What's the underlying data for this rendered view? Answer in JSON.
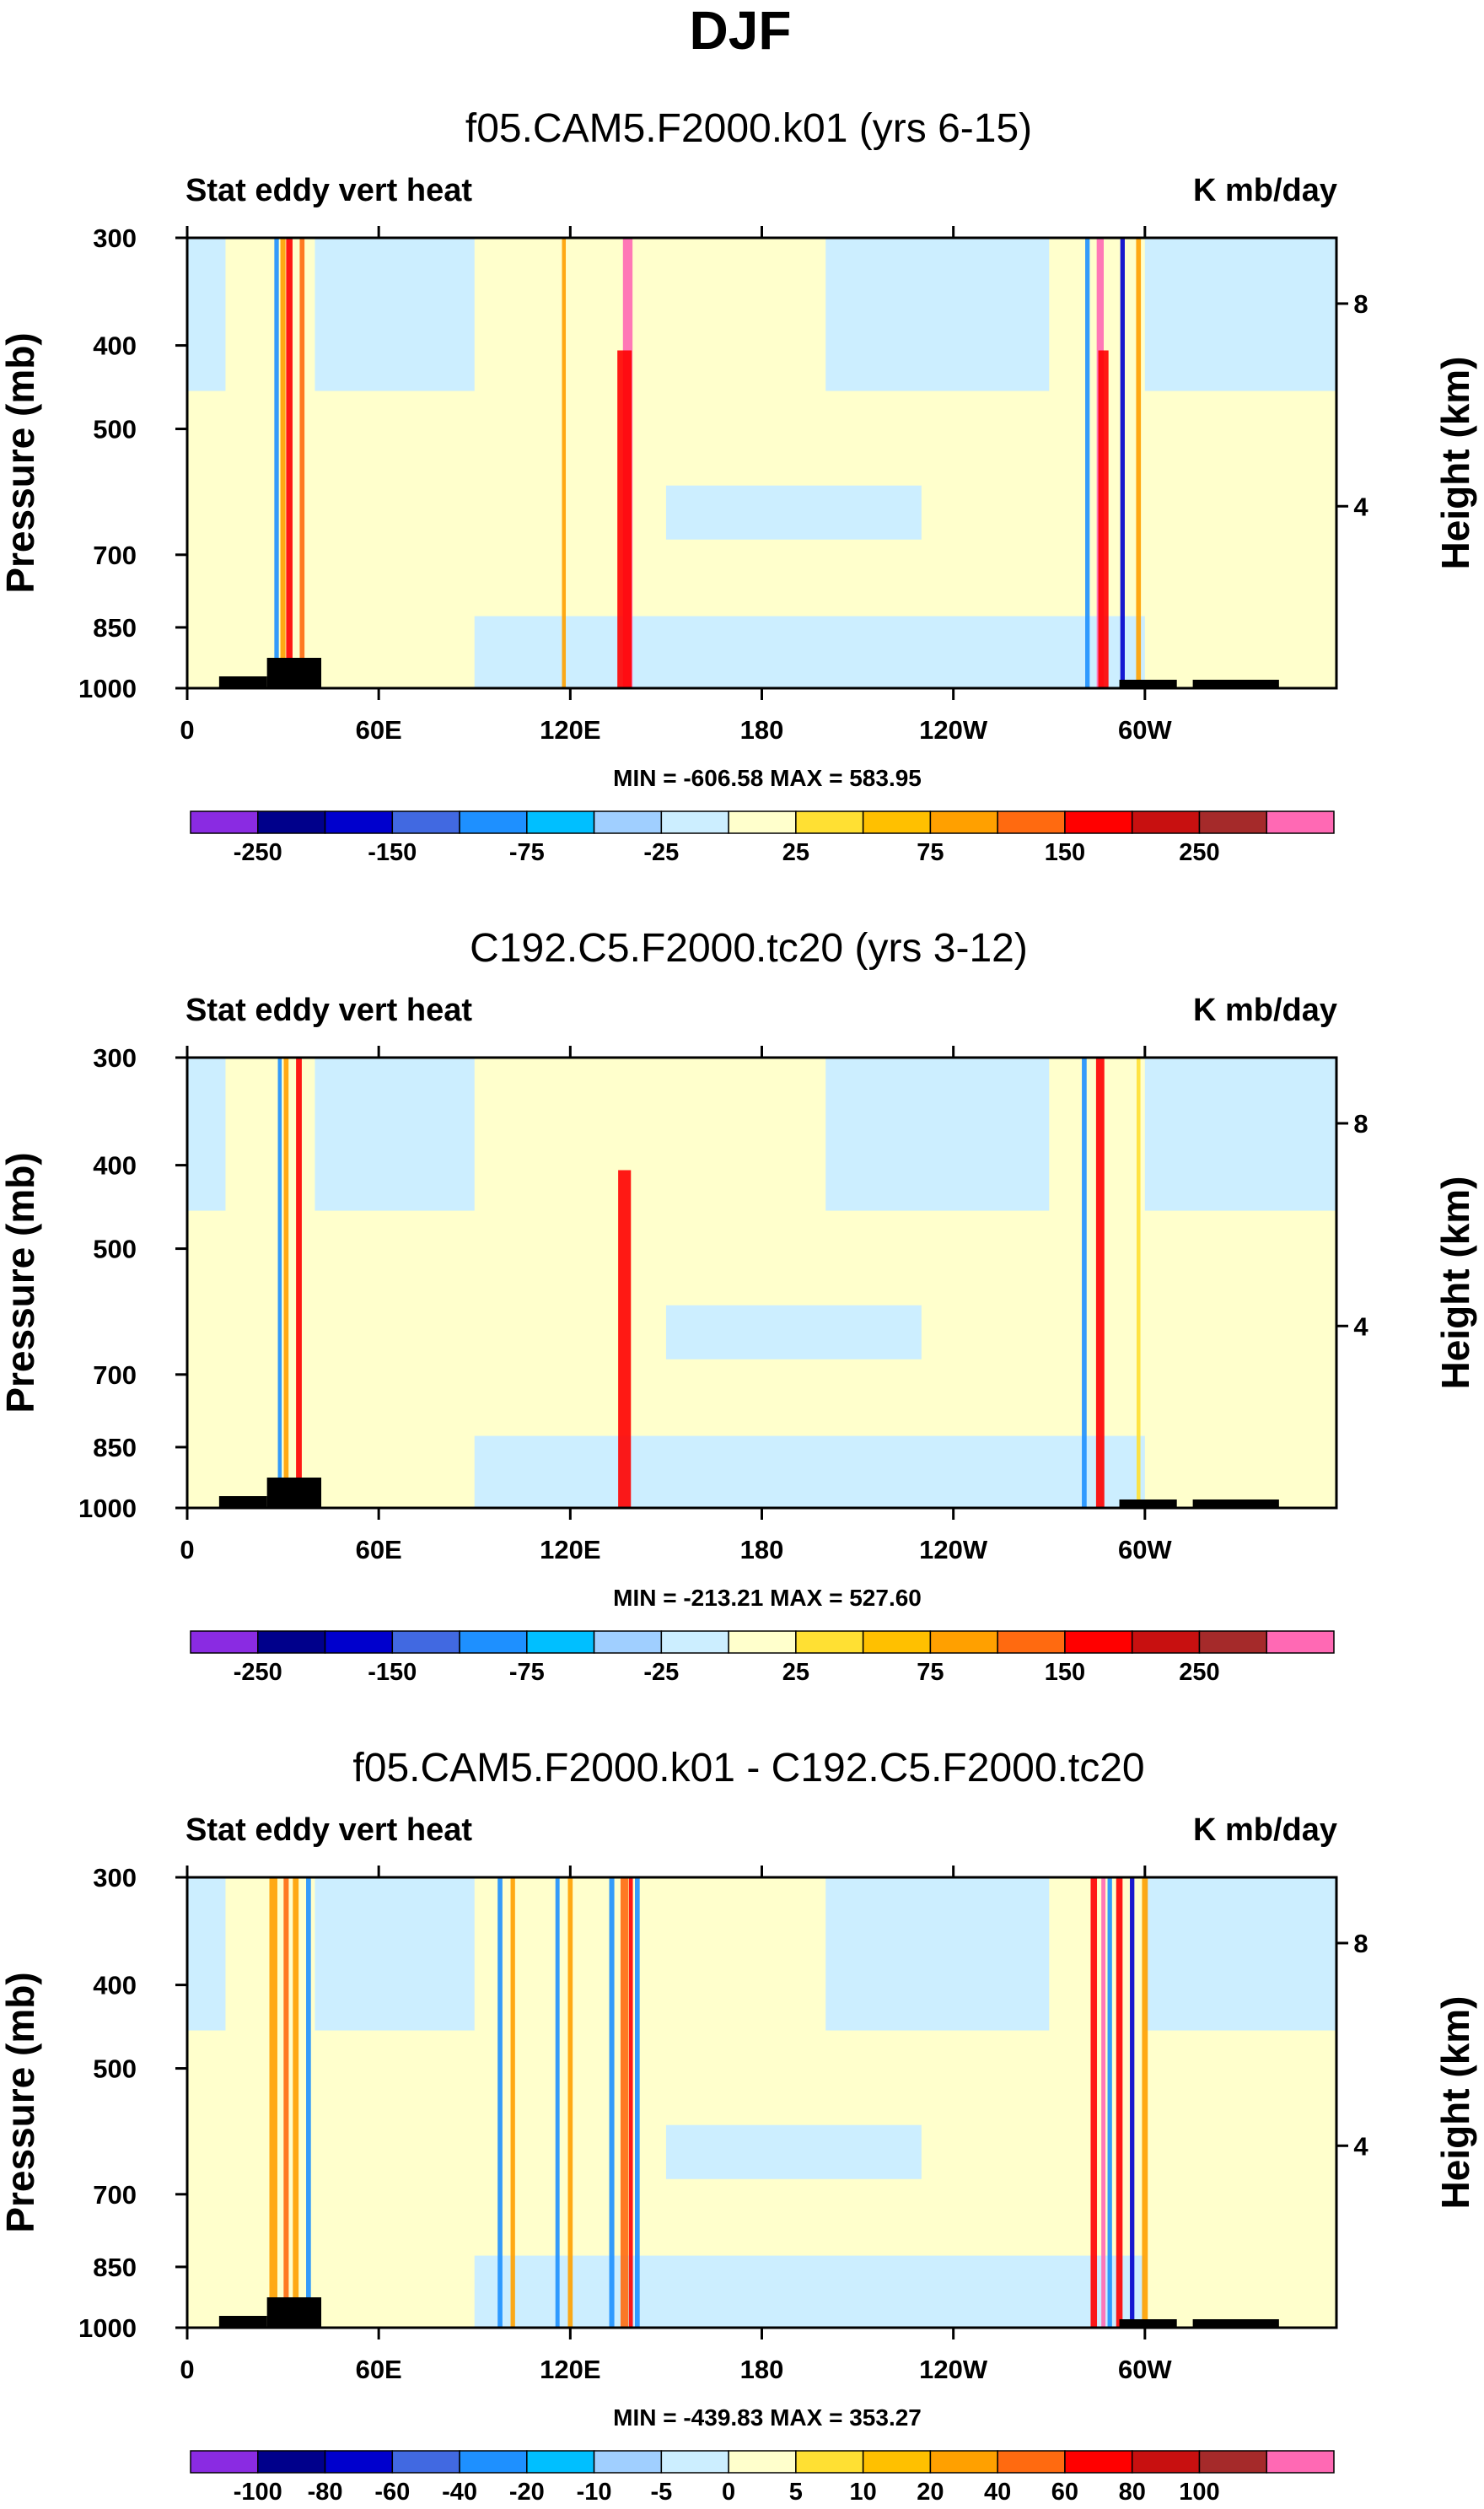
{
  "figure_title": "DJF",
  "chart_data": [
    {
      "type": "heatmap",
      "title": "f05.CAM5.F2000.k01 (yrs 6-15)",
      "left_label": "Stat eddy vert heat",
      "right_label": "K mb/day",
      "ylabel": "Pressure (mb)",
      "ylabel_right": "Height (km)",
      "yticks": [
        "300",
        "400",
        "500",
        "700",
        "850",
        "1000"
      ],
      "yticks_right": [
        "8",
        "4"
      ],
      "xticks": [
        "0",
        "60E",
        "120E",
        "180",
        "120W",
        "60W"
      ],
      "stats": "MIN = -606.58   MAX = 583.95",
      "colorbar": {
        "colors": [
          "#8a2be2",
          "#00008b",
          "#0000cd",
          "#4169e1",
          "#1e90ff",
          "#00bfff",
          "#a0cfff",
          "#cceeff",
          "#ffffcc",
          "#ffe033",
          "#ffc000",
          "#ffa000",
          "#ff6a10",
          "#ff0000",
          "#c81010",
          "#a52a2a",
          "#ff69b4"
        ],
        "labels": [
          "-250",
          "-150",
          "-75",
          "-25",
          "25",
          "75",
          "150",
          "250"
        ]
      },
      "features": [
        {
          "lon": 32,
          "width": 2.0,
          "color": "#ff0000"
        },
        {
          "lon": 30,
          "width": 1.6,
          "color": "#ffa000"
        },
        {
          "lon": 36,
          "width": 1.5,
          "color": "#ff6a10"
        },
        {
          "lon": 28,
          "width": 1.4,
          "color": "#1e90ff"
        },
        {
          "lon": 118,
          "width": 1.2,
          "color": "#ffa000"
        },
        {
          "lon": 138,
          "width": 3.0,
          "color": "#ff69b4"
        },
        {
          "lon": 137,
          "width": 4.5,
          "color": "#ff0000"
        },
        {
          "lon": 282,
          "width": 1.4,
          "color": "#1e90ff"
        },
        {
          "lon": 286,
          "width": 2.2,
          "color": "#ff69b4"
        },
        {
          "lon": 287,
          "width": 3.2,
          "color": "#ff0000"
        },
        {
          "lon": 293,
          "width": 1.4,
          "color": "#0000cd"
        },
        {
          "lon": 298,
          "width": 1.5,
          "color": "#ffa000"
        }
      ]
    },
    {
      "type": "heatmap",
      "title": "C192.C5.F2000.tc20 (yrs 3-12)",
      "left_label": "Stat eddy vert heat",
      "right_label": "K mb/day",
      "ylabel": "Pressure (mb)",
      "ylabel_right": "Height (km)",
      "yticks": [
        "300",
        "400",
        "500",
        "700",
        "850",
        "1000"
      ],
      "yticks_right": [
        "8",
        "4"
      ],
      "xticks": [
        "0",
        "60E",
        "120E",
        "180",
        "120W",
        "60W"
      ],
      "stats": "MIN = -213.21   MAX = 527.60",
      "colorbar": {
        "colors": [
          "#8a2be2",
          "#00008b",
          "#0000cd",
          "#4169e1",
          "#1e90ff",
          "#00bfff",
          "#a0cfff",
          "#cceeff",
          "#ffffcc",
          "#ffe033",
          "#ffc000",
          "#ffa000",
          "#ff6a10",
          "#ff0000",
          "#c81010",
          "#a52a2a",
          "#ff69b4"
        ],
        "labels": [
          "-250",
          "-150",
          "-75",
          "-25",
          "25",
          "75",
          "150",
          "250"
        ]
      },
      "features": [
        {
          "lon": 35,
          "width": 1.8,
          "color": "#ff0000"
        },
        {
          "lon": 31,
          "width": 1.5,
          "color": "#ffa000"
        },
        {
          "lon": 29,
          "width": 1.2,
          "color": "#1e90ff"
        },
        {
          "lon": 137,
          "width": 4.0,
          "color": "#ff0000"
        },
        {
          "lon": 281,
          "width": 1.5,
          "color": "#1e90ff"
        },
        {
          "lon": 286,
          "width": 2.6,
          "color": "#ff0000"
        },
        {
          "lon": 298,
          "width": 1.2,
          "color": "#ffe033"
        }
      ]
    },
    {
      "type": "heatmap",
      "title": "f05.CAM5.F2000.k01 - C192.C5.F2000.tc20",
      "left_label": "Stat eddy vert heat",
      "right_label": "K mb/day",
      "ylabel": "Pressure (mb)",
      "ylabel_right": "Height (km)",
      "yticks": [
        "300",
        "400",
        "500",
        "700",
        "850",
        "1000"
      ],
      "yticks_right": [
        "8",
        "4"
      ],
      "xticks": [
        "0",
        "60E",
        "120E",
        "180",
        "120W",
        "60W"
      ],
      "stats": "MIN = -439.83   MAX = 353.27",
      "colorbar": {
        "colors": [
          "#8a2be2",
          "#00008b",
          "#0000cd",
          "#4169e1",
          "#1e90ff",
          "#00bfff",
          "#a0cfff",
          "#cceeff",
          "#ffffcc",
          "#ffe033",
          "#ffc000",
          "#ffa000",
          "#ff6a10",
          "#ff0000",
          "#c81010",
          "#a52a2a",
          "#ff69b4"
        ],
        "labels": [
          "-100",
          "-80",
          "-60",
          "-40",
          "-20",
          "-10",
          "-5",
          "0",
          "5",
          "10",
          "20",
          "40",
          "60",
          "80",
          "100"
        ]
      },
      "features": [
        {
          "lon": 27,
          "width": 2.5,
          "color": "#ffa000"
        },
        {
          "lon": 31,
          "width": 1.6,
          "color": "#ff6a10"
        },
        {
          "lon": 34,
          "width": 1.8,
          "color": "#ffa000"
        },
        {
          "lon": 38,
          "width": 1.5,
          "color": "#1e90ff"
        },
        {
          "lon": 98,
          "width": 1.5,
          "color": "#1e90ff"
        },
        {
          "lon": 102,
          "width": 1.4,
          "color": "#ffa000"
        },
        {
          "lon": 116,
          "width": 1.3,
          "color": "#1e90ff"
        },
        {
          "lon": 120,
          "width": 1.5,
          "color": "#ffa000"
        },
        {
          "lon": 133,
          "width": 1.6,
          "color": "#1e90ff"
        },
        {
          "lon": 137,
          "width": 2.5,
          "color": "#ff6a10"
        },
        {
          "lon": 139,
          "width": 1.2,
          "color": "#ff0000"
        },
        {
          "lon": 141,
          "width": 1.5,
          "color": "#1e90ff"
        },
        {
          "lon": 284,
          "width": 2.0,
          "color": "#ff0000"
        },
        {
          "lon": 287,
          "width": 1.3,
          "color": "#ff69b4"
        },
        {
          "lon": 289,
          "width": 1.4,
          "color": "#1e90ff"
        },
        {
          "lon": 292,
          "width": 2.0,
          "color": "#ff0000"
        },
        {
          "lon": 296,
          "width": 1.4,
          "color": "#0000cd"
        },
        {
          "lon": 300,
          "width": 1.8,
          "color": "#ffa000"
        }
      ]
    }
  ]
}
